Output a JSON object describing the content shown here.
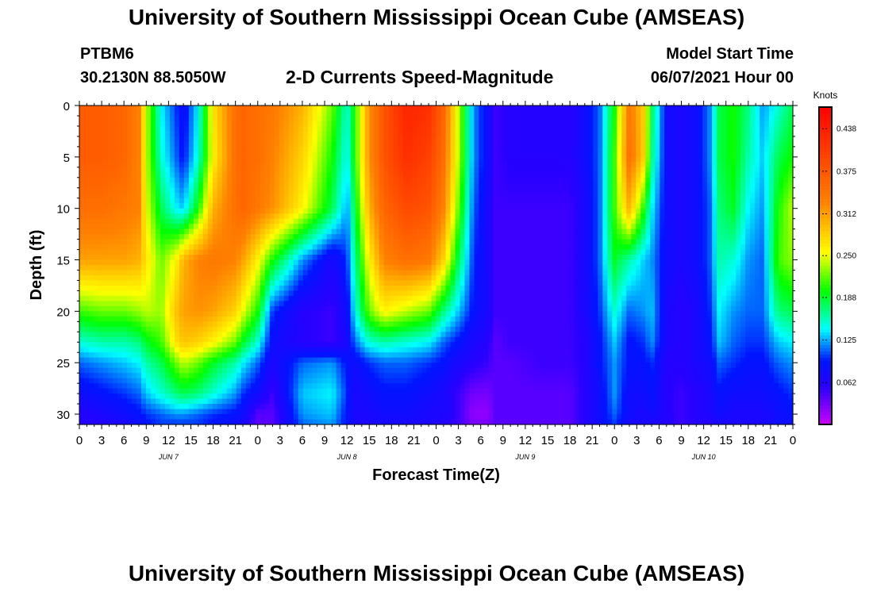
{
  "page": {
    "title_top": "University of Southern Mississippi Ocean Cube (AMSEAS)",
    "title_bottom": "University of Southern Mississippi Ocean Cube (AMSEAS)",
    "station": "PTBM6",
    "coords": "30.2130N  88.5050W",
    "model_start_label": "Model Start Time",
    "model_start_value": "06/07/2021 Hour 00"
  },
  "chart_data": {
    "type": "heatmap",
    "title": "2-D Currents Speed-Magnitude",
    "xlabel": "Forecast Time(Z)",
    "ylabel": "Depth (ft)",
    "colorbar_label": "Knots",
    "x_tick_labels": [
      "0",
      "3",
      "6",
      "9",
      "12",
      "15",
      "18",
      "21",
      "0",
      "3",
      "6",
      "9",
      "12",
      "15",
      "18",
      "21",
      "0",
      "3",
      "6",
      "9",
      "12",
      "15",
      "18",
      "21",
      "0",
      "3",
      "6",
      "9",
      "12",
      "15",
      "18",
      "21",
      "0"
    ],
    "x_range_hours": [
      0,
      96
    ],
    "date_labels": [
      {
        "hour": 12,
        "text": "JUN 7"
      },
      {
        "hour": 36,
        "text": "JUN 8"
      },
      {
        "hour": 60,
        "text": "JUN 9"
      },
      {
        "hour": 84,
        "text": "JUN 10"
      }
    ],
    "y_ticks": [
      0,
      5,
      10,
      15,
      20,
      25,
      30
    ],
    "ylim": [
      0,
      31
    ],
    "y_inverted": true,
    "colorbar_ticks": [
      "0.438",
      "0.375",
      "0.312",
      "0.250",
      "0.188",
      "0.125",
      "0.062"
    ],
    "color_range": [
      0,
      0.47
    ],
    "colors": {
      "low": "#cc00ff",
      "mid_low": "#0000ff",
      "mid": "#00ff00",
      "mid_high": "#ffff00",
      "high": "#ff0000"
    },
    "columns_x": [
      0,
      3,
      6,
      8,
      9,
      11,
      13,
      14,
      16,
      18,
      21,
      22,
      24,
      26,
      30,
      34,
      36,
      37,
      39,
      41,
      44,
      47,
      49,
      51,
      53,
      55,
      56,
      58,
      62,
      66,
      68,
      70,
      72,
      74,
      76,
      77,
      79,
      81,
      83,
      85,
      86,
      88,
      90,
      92,
      94,
      96
    ],
    "rows_depth": [
      0,
      5,
      10,
      15,
      20,
      23,
      25,
      28,
      30,
      31
    ],
    "values": [
      [
        0.37,
        0.37,
        0.36,
        0.33,
        0.24,
        0.14,
        0.1,
        0.08,
        0.14,
        0.27,
        0.35,
        0.36,
        0.35,
        0.34,
        0.3,
        0.22,
        0.15,
        0.2,
        0.32,
        0.38,
        0.43,
        0.42,
        0.36,
        0.24,
        0.12,
        0.08,
        0.05,
        0.06,
        0.06,
        0.06,
        0.08,
        0.11,
        0.2,
        0.34,
        0.28,
        0.18,
        0.08,
        0.07,
        0.08,
        0.12,
        0.18,
        0.2,
        0.17,
        0.12,
        0.15,
        0.18
      ],
      [
        0.37,
        0.37,
        0.36,
        0.33,
        0.24,
        0.15,
        0.11,
        0.09,
        0.15,
        0.26,
        0.35,
        0.36,
        0.35,
        0.33,
        0.28,
        0.2,
        0.14,
        0.2,
        0.32,
        0.38,
        0.42,
        0.4,
        0.35,
        0.24,
        0.12,
        0.08,
        0.05,
        0.06,
        0.06,
        0.06,
        0.08,
        0.11,
        0.21,
        0.35,
        0.28,
        0.17,
        0.08,
        0.07,
        0.08,
        0.12,
        0.18,
        0.2,
        0.16,
        0.13,
        0.18,
        0.2
      ],
      [
        0.35,
        0.35,
        0.34,
        0.33,
        0.25,
        0.18,
        0.14,
        0.13,
        0.2,
        0.3,
        0.35,
        0.36,
        0.34,
        0.32,
        0.26,
        0.18,
        0.12,
        0.18,
        0.3,
        0.36,
        0.39,
        0.38,
        0.33,
        0.22,
        0.11,
        0.07,
        0.05,
        0.05,
        0.05,
        0.05,
        0.07,
        0.11,
        0.21,
        0.3,
        0.2,
        0.14,
        0.08,
        0.07,
        0.08,
        0.11,
        0.17,
        0.19,
        0.14,
        0.12,
        0.2,
        0.24
      ],
      [
        0.31,
        0.31,
        0.31,
        0.3,
        0.27,
        0.22,
        0.26,
        0.3,
        0.33,
        0.34,
        0.33,
        0.31,
        0.26,
        0.2,
        0.12,
        0.07,
        0.1,
        0.16,
        0.26,
        0.33,
        0.35,
        0.34,
        0.28,
        0.18,
        0.1,
        0.07,
        0.05,
        0.05,
        0.05,
        0.05,
        0.07,
        0.11,
        0.19,
        0.16,
        0.13,
        0.12,
        0.08,
        0.07,
        0.08,
        0.11,
        0.16,
        0.15,
        0.12,
        0.11,
        0.21,
        0.23
      ],
      [
        0.21,
        0.22,
        0.22,
        0.23,
        0.24,
        0.23,
        0.29,
        0.31,
        0.32,
        0.31,
        0.28,
        0.25,
        0.2,
        0.1,
        0.06,
        0.05,
        0.08,
        0.14,
        0.22,
        0.26,
        0.24,
        0.22,
        0.17,
        0.13,
        0.09,
        0.07,
        0.05,
        0.05,
        0.05,
        0.05,
        0.07,
        0.1,
        0.15,
        0.11,
        0.12,
        0.13,
        0.07,
        0.06,
        0.07,
        0.1,
        0.14,
        0.12,
        0.11,
        0.11,
        0.17,
        0.18
      ],
      [
        0.15,
        0.16,
        0.16,
        0.17,
        0.19,
        0.21,
        0.27,
        0.29,
        0.28,
        0.26,
        0.22,
        0.19,
        0.15,
        0.08,
        0.06,
        0.05,
        0.07,
        0.11,
        0.15,
        0.16,
        0.15,
        0.14,
        0.11,
        0.09,
        0.07,
        0.06,
        0.04,
        0.05,
        0.05,
        0.05,
        0.06,
        0.09,
        0.13,
        0.09,
        0.1,
        0.12,
        0.07,
        0.06,
        0.07,
        0.09,
        0.13,
        0.11,
        0.1,
        0.1,
        0.13,
        0.14
      ],
      [
        0.11,
        0.12,
        0.13,
        0.14,
        0.16,
        0.18,
        0.22,
        0.24,
        0.22,
        0.19,
        0.16,
        0.14,
        0.11,
        0.07,
        0.11,
        0.12,
        0.09,
        0.08,
        0.1,
        0.11,
        0.11,
        0.1,
        0.09,
        0.07,
        0.06,
        0.05,
        0.04,
        0.04,
        0.05,
        0.05,
        0.06,
        0.09,
        0.12,
        0.09,
        0.09,
        0.1,
        0.06,
        0.06,
        0.07,
        0.08,
        0.11,
        0.1,
        0.09,
        0.09,
        0.11,
        0.12
      ],
      [
        0.08,
        0.09,
        0.1,
        0.11,
        0.13,
        0.15,
        0.17,
        0.18,
        0.17,
        0.15,
        0.12,
        0.1,
        0.08,
        0.05,
        0.13,
        0.14,
        0.1,
        0.07,
        0.08,
        0.09,
        0.09,
        0.08,
        0.07,
        0.05,
        0.03,
        0.03,
        0.04,
        0.04,
        0.04,
        0.04,
        0.06,
        0.08,
        0.12,
        0.08,
        0.08,
        0.09,
        0.06,
        0.05,
        0.06,
        0.07,
        0.09,
        0.08,
        0.08,
        0.08,
        0.09,
        0.1
      ],
      [
        0.06,
        0.07,
        0.08,
        0.09,
        0.1,
        0.11,
        0.12,
        0.12,
        0.11,
        0.1,
        0.09,
        0.08,
        0.04,
        0.04,
        0.12,
        0.13,
        0.09,
        0.07,
        0.07,
        0.08,
        0.08,
        0.07,
        0.07,
        0.05,
        0.02,
        0.02,
        0.04,
        0.04,
        0.04,
        0.04,
        0.06,
        0.08,
        0.11,
        0.08,
        0.07,
        0.08,
        0.06,
        0.05,
        0.06,
        0.07,
        0.08,
        0.07,
        0.07,
        0.07,
        0.08,
        0.09
      ],
      [
        0.06,
        0.06,
        0.07,
        0.08,
        0.09,
        0.1,
        0.1,
        0.1,
        0.1,
        0.09,
        0.08,
        0.07,
        0.04,
        0.04,
        0.11,
        0.12,
        0.09,
        0.07,
        0.07,
        0.07,
        0.07,
        0.07,
        0.06,
        0.05,
        0.03,
        0.03,
        0.04,
        0.04,
        0.04,
        0.04,
        0.06,
        0.08,
        0.1,
        0.07,
        0.07,
        0.07,
        0.06,
        0.05,
        0.06,
        0.06,
        0.07,
        0.07,
        0.07,
        0.07,
        0.08,
        0.08
      ]
    ]
  }
}
